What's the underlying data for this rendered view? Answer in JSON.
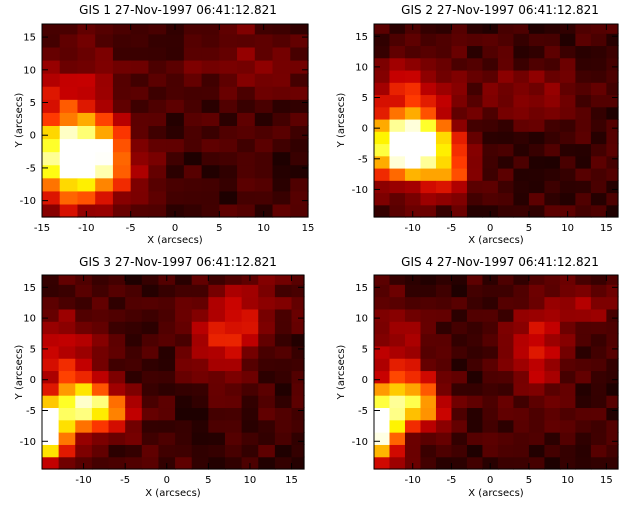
{
  "chart_data": [
    {
      "type": "heatmap",
      "title": "GIS 1 27-Nov-1997 06:41:12.821",
      "xlabel": "X (arcsecs)",
      "ylabel": "Y (arcsecs)",
      "xlim": [
        -15,
        15
      ],
      "ylim": [
        -12.5,
        17
      ],
      "xticks": [
        -15,
        -10,
        -5,
        0,
        5,
        10,
        15
      ],
      "yticks": [
        -10,
        -5,
        0,
        5,
        10,
        15
      ],
      "colormap": "red-temperature",
      "grid": false,
      "peak": {
        "x": -10,
        "y": -3
      },
      "blobs": [
        {
          "x": -10.5,
          "y": -3,
          "sx": 3.0,
          "sy": 3.2,
          "a": 1.0
        },
        {
          "x": -12,
          "y": -6,
          "sx": 4.5,
          "sy": 5,
          "a": 0.35
        },
        {
          "x": -12,
          "y": 5,
          "sx": 4,
          "sy": 5,
          "a": 0.25
        },
        {
          "x": 8,
          "y": 12,
          "sx": 5,
          "sy": 4,
          "a": 0.12
        }
      ]
    },
    {
      "type": "heatmap",
      "title": "GIS 2 27-Nov-1997 06:41:12.821",
      "xlabel": "X (arcsecs)",
      "ylabel": "Y (arcsecs)",
      "xlim": [
        -15,
        16.5
      ],
      "ylim": [
        -14.5,
        17
      ],
      "xticks": [
        -10,
        -5,
        0,
        5,
        10,
        15
      ],
      "yticks": [
        -10,
        -5,
        0,
        5,
        10,
        15
      ],
      "colormap": "red-temperature",
      "grid": false,
      "peak": {
        "x": -9,
        "y": -2
      },
      "blobs": [
        {
          "x": -9.5,
          "y": -2.5,
          "sx": 3.0,
          "sy": 3.0,
          "a": 0.95
        },
        {
          "x": -13,
          "y": -3,
          "sx": 3,
          "sy": 4,
          "a": 0.45
        },
        {
          "x": -6,
          "y": -7,
          "sx": 3,
          "sy": 3,
          "a": 0.35
        },
        {
          "x": -10,
          "y": 6,
          "sx": 4,
          "sy": 4,
          "a": 0.25
        },
        {
          "x": 5,
          "y": 6,
          "sx": 4,
          "sy": 3,
          "a": 0.15
        }
      ]
    },
    {
      "type": "heatmap",
      "title": "GIS 3 27-Nov-1997 06:41:12.821",
      "xlabel": "X (arcsecs)",
      "ylabel": "Y (arcsecs)",
      "xlim": [
        -15,
        16.5
      ],
      "ylim": [
        -14.5,
        17
      ],
      "xticks": [
        -10,
        -5,
        0,
        5,
        10,
        15
      ],
      "yticks": [
        -10,
        -5,
        0,
        5,
        10,
        15
      ],
      "colormap": "red-temperature",
      "grid": false,
      "peak": {
        "x": -14,
        "y": -8
      },
      "blobs": [
        {
          "x": -14.5,
          "y": -8,
          "sx": 2.0,
          "sy": 3.5,
          "a": 1.0
        },
        {
          "x": -10,
          "y": -4,
          "sx": 2,
          "sy": 2.5,
          "a": 0.65
        },
        {
          "x": -7,
          "y": -5,
          "sx": 2.5,
          "sy": 2.5,
          "a": 0.4
        },
        {
          "x": -12,
          "y": 4,
          "sx": 3,
          "sy": 5,
          "a": 0.25
        },
        {
          "x": 7,
          "y": 7,
          "sx": 3,
          "sy": 4,
          "a": 0.3
        },
        {
          "x": 10,
          "y": 13,
          "sx": 3,
          "sy": 3,
          "a": 0.15
        }
      ]
    },
    {
      "type": "heatmap",
      "title": "GIS 4 27-Nov-1997 06:41:12.821",
      "xlabel": "X (arcsecs)",
      "ylabel": "Y (arcsecs)",
      "xlim": [
        -15,
        16.5
      ],
      "ylim": [
        -14.5,
        17
      ],
      "xticks": [
        -10,
        -5,
        0,
        5,
        10,
        15
      ],
      "yticks": [
        -10,
        -5,
        0,
        5,
        10,
        15
      ],
      "colormap": "red-temperature",
      "grid": false,
      "peak": {
        "x": -14,
        "y": -8
      },
      "blobs": [
        {
          "x": -14.5,
          "y": -8,
          "sx": 2.0,
          "sy": 3.5,
          "a": 1.0
        },
        {
          "x": -11,
          "y": -3,
          "sx": 2.5,
          "sy": 3,
          "a": 0.55
        },
        {
          "x": -8,
          "y": -5,
          "sx": 2,
          "sy": 2,
          "a": 0.3
        },
        {
          "x": -12,
          "y": 5,
          "sx": 3,
          "sy": 5,
          "a": 0.2
        },
        {
          "x": 6,
          "y": 5,
          "sx": 2.5,
          "sy": 5,
          "a": 0.3
        },
        {
          "x": 12,
          "y": 12,
          "sx": 3,
          "sy": 3,
          "a": 0.15
        }
      ]
    }
  ]
}
